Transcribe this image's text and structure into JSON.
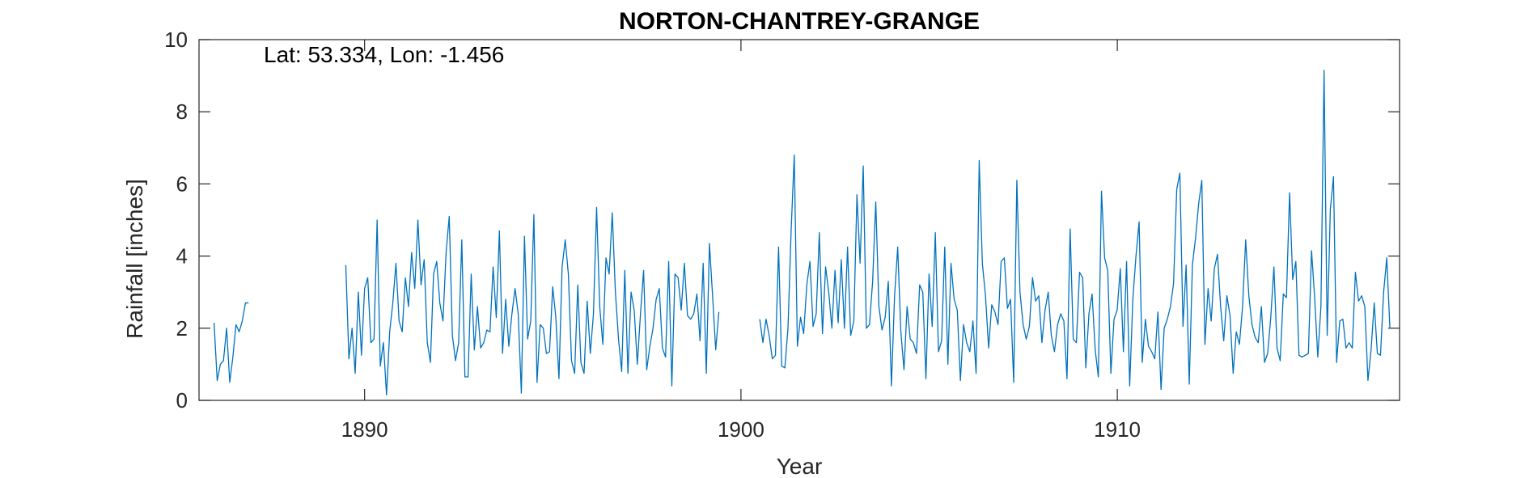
{
  "chart_data": {
    "type": "line",
    "title": "NORTON-CHANTREY-GRANGE",
    "xlabel": "Year",
    "ylabel": "Rainfall [inches]",
    "annotation": "Lat: 53.334, Lon: -1.456",
    "xlim": [
      1885.6,
      1917.5
    ],
    "ylim": [
      0,
      10
    ],
    "xticks": [
      1890,
      1900,
      1910
    ],
    "xtick_labels": [
      "1890",
      "1900",
      "1910"
    ],
    "yticks": [
      0,
      2,
      4,
      6,
      8,
      10
    ],
    "ytick_labels": [
      "0",
      "2",
      "4",
      "6",
      "8",
      "10"
    ],
    "grid": false,
    "box": true,
    "line_color": "#0072BD",
    "axis_color": "#262626",
    "series": [
      {
        "segments": [
          {
            "start_year": 1886.0,
            "step": 0.0833,
            "values": [
              2.15,
              0.55,
              1.0,
              1.1,
              2.0,
              0.5,
              1.2,
              2.1,
              1.9,
              2.2,
              2.7,
              2.7
            ]
          },
          {
            "start_year": 1889.5,
            "step": 0.0833,
            "values": [
              3.75,
              1.15,
              2.0,
              0.75,
              3.0,
              1.25,
              3.1,
              3.4,
              1.6,
              1.7,
              5.0,
              0.95,
              1.6,
              0.15,
              1.9,
              2.7,
              3.8,
              2.2,
              1.9,
              3.4,
              2.6,
              4.1,
              3.1,
              5.0,
              3.2,
              3.9,
              1.6,
              1.05,
              3.5,
              3.85,
              2.7,
              2.2,
              4.1,
              5.1,
              1.8,
              1.1,
              1.6,
              4.45,
              0.65,
              0.65,
              3.5,
              1.4,
              2.6,
              1.45,
              1.6,
              1.95,
              1.9,
              3.7,
              2.3,
              4.7,
              1.3,
              2.8,
              1.5,
              2.4,
              3.1,
              2.4,
              0.2,
              4.55,
              1.7,
              2.2,
              5.15,
              0.5,
              2.1,
              2.0,
              1.3,
              1.35,
              3.15,
              2.3,
              0.6,
              3.7,
              4.45,
              3.5,
              1.1,
              0.75,
              3.2,
              1.05,
              0.75,
              2.75,
              1.3,
              2.4,
              5.35,
              2.6,
              1.55,
              3.95,
              3.5,
              5.2,
              3.0,
              1.7,
              0.8,
              3.6,
              0.75,
              3.0,
              2.5,
              1.0,
              2.4,
              3.6,
              0.85,
              1.5,
              2.0,
              2.8,
              3.1,
              1.45,
              1.2,
              3.85,
              0.4,
              3.5,
              3.4,
              2.5,
              3.8,
              2.35,
              2.25,
              2.4,
              2.95,
              1.65,
              3.8,
              0.75,
              4.35,
              2.9,
              1.4,
              2.45
            ]
          },
          {
            "start_year": 1900.5,
            "step": 0.0833,
            "values": [
              2.25,
              1.6,
              2.25,
              1.8,
              1.15,
              1.25,
              4.25,
              0.95,
              0.9,
              2.0,
              4.7,
              6.8,
              1.5,
              2.3,
              1.85,
              3.2,
              3.85,
              2.05,
              2.4,
              4.65,
              1.85,
              3.7,
              3.0,
              2.0,
              3.6,
              2.15,
              3.9,
              2.0,
              4.25,
              1.8,
              2.2,
              5.7,
              3.8,
              6.5,
              2.0,
              2.1,
              3.3,
              5.5,
              2.6,
              1.95,
              2.3,
              3.3,
              0.4,
              2.9,
              4.25,
              1.9,
              0.85,
              2.6,
              1.7,
              1.6,
              1.3,
              3.2,
              3.0,
              0.6,
              3.5,
              2.05,
              4.65,
              1.35,
              1.65,
              4.25,
              1.0,
              3.8,
              2.8,
              2.5,
              0.55,
              2.1,
              1.6,
              1.35,
              2.2,
              0.75,
              6.65,
              3.8,
              2.9,
              1.45,
              2.65,
              2.45,
              2.1,
              3.85,
              3.95,
              2.55,
              2.8,
              0.5,
              6.1,
              3.0,
              2.1,
              1.7,
              2.05,
              3.4,
              2.75,
              2.9,
              1.6,
              2.5,
              3.0,
              1.8,
              1.35,
              2.1,
              2.4,
              2.2,
              0.6,
              4.75,
              1.7,
              1.6,
              3.55,
              3.4,
              0.9,
              2.4,
              2.95,
              1.4,
              0.65,
              5.8,
              3.95,
              3.6,
              0.75,
              2.25,
              2.5,
              3.65,
              1.35,
              3.85,
              0.4,
              2.8,
              4.0,
              4.95,
              1.05,
              2.25,
              1.5,
              1.35,
              1.15,
              2.45,
              0.3,
              2.0,
              2.25,
              2.6,
              3.25,
              5.85,
              6.3,
              2.05,
              3.75,
              0.45,
              3.75,
              4.5,
              5.45,
              6.1,
              1.55,
              3.1,
              2.2,
              3.65,
              4.05,
              2.6,
              1.65,
              2.9,
              2.35,
              0.75,
              1.9,
              1.55,
              2.6,
              4.45,
              2.9,
              2.1,
              1.75,
              1.6,
              2.6,
              1.05,
              1.3,
              2.3,
              3.7,
              1.45,
              1.1,
              2.95,
              2.85,
              5.75,
              3.35,
              3.85,
              1.25,
              1.2,
              1.25,
              1.3,
              4.15,
              2.85,
              1.2,
              2.6,
              9.15,
              1.8,
              5.3,
              6.2,
              1.05,
              2.2,
              2.25,
              1.45,
              1.6,
              1.45,
              3.55,
              2.75,
              2.9,
              2.6,
              0.55,
              1.4,
              2.7,
              1.3,
              1.25,
              3.0,
              3.95,
              2.0
            ]
          }
        ]
      }
    ]
  }
}
